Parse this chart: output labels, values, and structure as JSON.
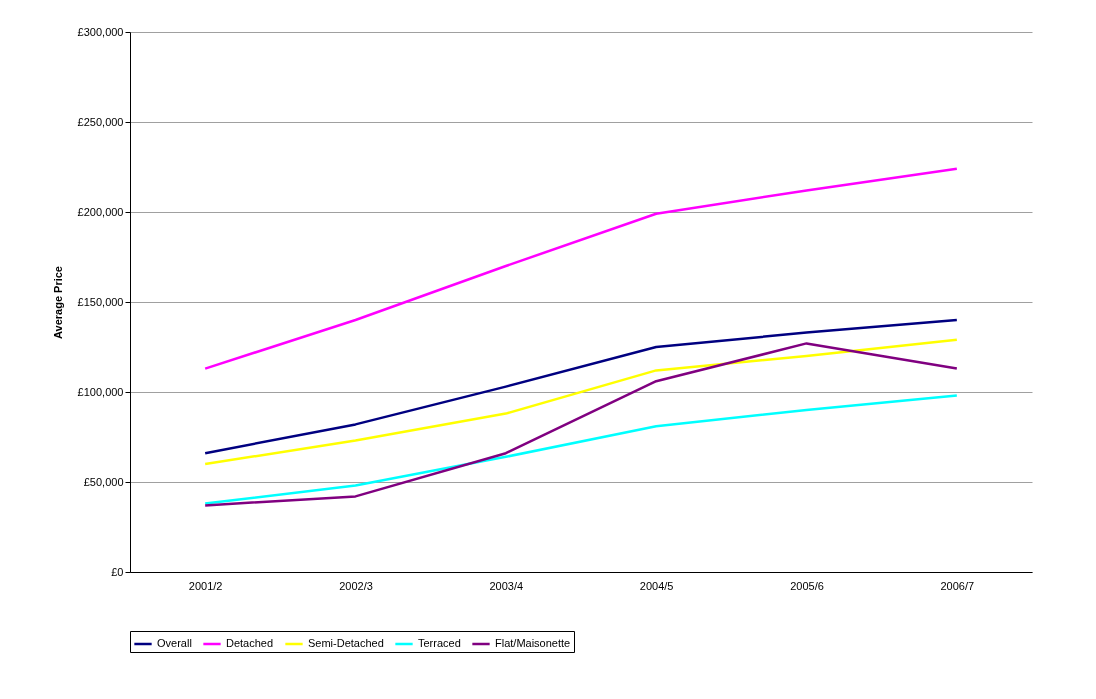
{
  "chart_data": {
    "type": "line",
    "ylabel": "Average Price",
    "categories": [
      "2001/2",
      "2002/3",
      "2003/4",
      "2004/5",
      "2005/6",
      "2006/7"
    ],
    "series": [
      {
        "name": "Overall",
        "color": "#000080",
        "values": [
          66000,
          82000,
          103000,
          125000,
          133000,
          140000
        ]
      },
      {
        "name": "Detached",
        "color": "#ff00ff",
        "values": [
          113000,
          140000,
          170000,
          199000,
          212000,
          224000
        ]
      },
      {
        "name": "Semi-Detached",
        "color": "#ffff00",
        "values": [
          60000,
          73000,
          88000,
          112000,
          120000,
          129000
        ]
      },
      {
        "name": "Terraced",
        "color": "#00ffff",
        "values": [
          38000,
          48000,
          64000,
          81000,
          90000,
          98000
        ]
      },
      {
        "name": "Flat/Maisonette",
        "color": "#800080",
        "values": [
          37000,
          42000,
          66000,
          106000,
          127000,
          113000
        ]
      }
    ],
    "ylim": [
      0,
      300000
    ],
    "yticks": [
      {
        "value": 0,
        "label": "£0"
      },
      {
        "value": 50000,
        "label": "£50,000"
      },
      {
        "value": 100000,
        "label": "£100,000"
      },
      {
        "value": 150000,
        "label": "£150,000"
      },
      {
        "value": 200000,
        "label": "£200,000"
      },
      {
        "value": 250000,
        "label": "£250,000"
      },
      {
        "value": 300000,
        "label": "£300,000"
      }
    ],
    "grid": "y",
    "legend": "bottom"
  }
}
